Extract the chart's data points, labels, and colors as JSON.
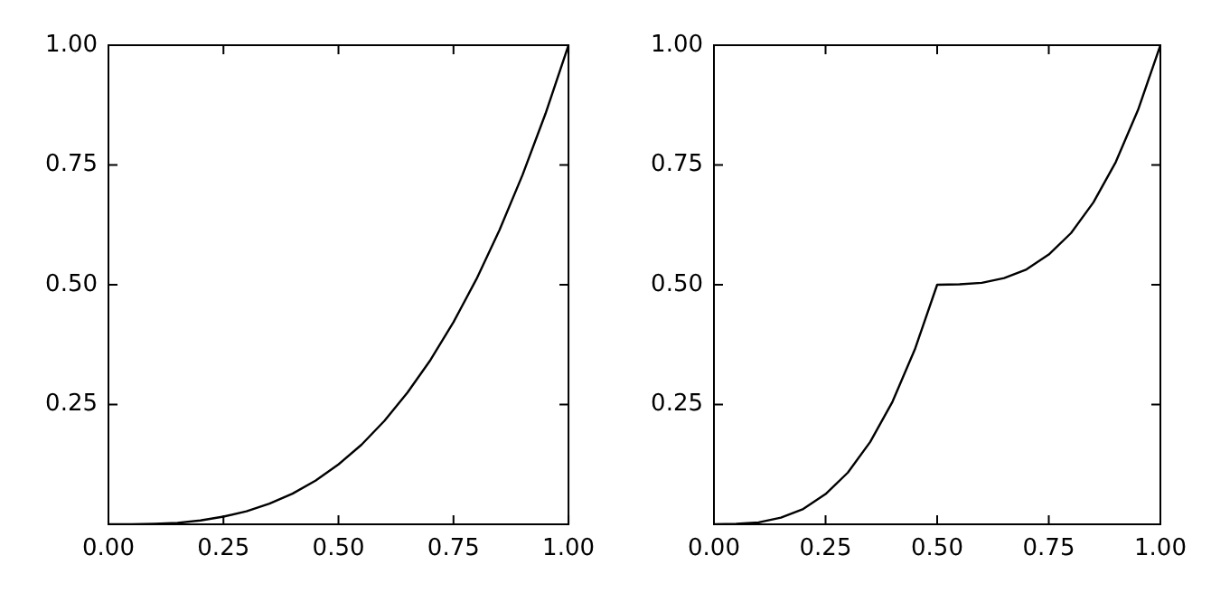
{
  "chart_data": [
    {
      "type": "line",
      "x": [
        0,
        0.05,
        0.1,
        0.15,
        0.2,
        0.25,
        0.3,
        0.35,
        0.4,
        0.45,
        0.5,
        0.55,
        0.6,
        0.65,
        0.7,
        0.75,
        0.8,
        0.85,
        0.9,
        0.95,
        1
      ],
      "series": [
        {
          "color": "#000000",
          "values": [
            0,
            0,
            0.001,
            0.003,
            0.008,
            0.016,
            0.027,
            0.043,
            0.064,
            0.091,
            0.125,
            0.166,
            0.216,
            0.275,
            0.343,
            0.422,
            0.512,
            0.614,
            0.729,
            0.857,
            1
          ]
        }
      ],
      "xlim": [
        0,
        1
      ],
      "ylim": [
        0,
        1
      ],
      "xticks": [
        {
          "value": 0,
          "label": "0.00"
        },
        {
          "value": 0.25,
          "label": "0.25"
        },
        {
          "value": 0.5,
          "label": "0.50"
        },
        {
          "value": 0.75,
          "label": "0.75"
        },
        {
          "value": 1,
          "label": "1.00"
        }
      ],
      "yticks": [
        {
          "value": 0.25,
          "label": "0.25"
        },
        {
          "value": 0.5,
          "label": "0.50"
        },
        {
          "value": 0.75,
          "label": "0.75"
        },
        {
          "value": 1,
          "label": "1.00"
        }
      ],
      "grid": false
    },
    {
      "type": "line",
      "x": [
        0,
        0.05,
        0.1,
        0.15,
        0.2,
        0.25,
        0.3,
        0.35,
        0.4,
        0.45,
        0.5,
        0.55,
        0.6,
        0.65,
        0.7,
        0.75,
        0.8,
        0.85,
        0.9,
        0.95,
        1
      ],
      "series": [
        {
          "color": "#000000",
          "values": [
            0,
            0.001,
            0.004,
            0.014,
            0.032,
            0.063,
            0.108,
            0.172,
            0.256,
            0.365,
            0.5,
            0.501,
            0.504,
            0.514,
            0.532,
            0.563,
            0.608,
            0.672,
            0.756,
            0.865,
            1
          ]
        }
      ],
      "xlim": [
        0,
        1
      ],
      "ylim": [
        0,
        1
      ],
      "xticks": [
        {
          "value": 0,
          "label": "0.00"
        },
        {
          "value": 0.25,
          "label": "0.25"
        },
        {
          "value": 0.5,
          "label": "0.50"
        },
        {
          "value": 0.75,
          "label": "0.75"
        },
        {
          "value": 1,
          "label": "1.00"
        }
      ],
      "yticks": [
        {
          "value": 0.25,
          "label": "0.25"
        },
        {
          "value": 0.5,
          "label": "0.50"
        },
        {
          "value": 0.75,
          "label": "0.75"
        },
        {
          "value": 1,
          "label": "1.00"
        }
      ],
      "grid": false
    }
  ]
}
